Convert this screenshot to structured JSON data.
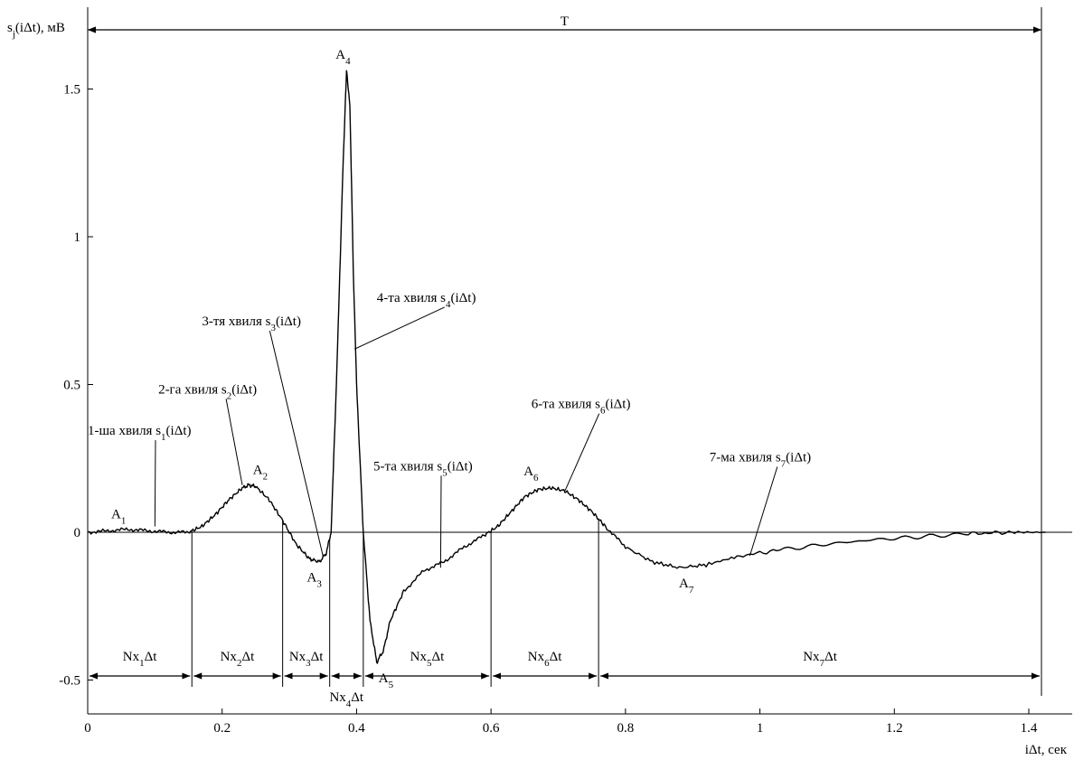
{
  "chart_data": {
    "type": "line",
    "ylabel": "s_j(iΔt), мВ",
    "xlabel": "iΔt, сек",
    "xlim": [
      0,
      1.425
    ],
    "ylim": [
      -0.5,
      1.75
    ],
    "grid": false,
    "x_ticks": [
      "0",
      "0.2",
      "0.4",
      "0.6",
      "0.8",
      "1",
      "1.2",
      "1.4"
    ],
    "x_tick_values": [
      0,
      0.2,
      0.4,
      0.6,
      0.8,
      1.0,
      1.2,
      1.4
    ],
    "y_ticks": [
      "-0.5",
      "0",
      "0.5",
      "1",
      "1.5"
    ],
    "y_tick_values": [
      -0.5,
      0,
      0.5,
      1.0,
      1.5
    ],
    "period": {
      "label": "T",
      "from": 0,
      "to": 1.425
    },
    "series": [
      {
        "x": [
          0,
          0.03,
          0.06,
          0.09,
          0.12,
          0.15,
          0.17,
          0.19,
          0.21,
          0.23,
          0.24,
          0.25,
          0.27,
          0.29,
          0.31,
          0.33,
          0.345,
          0.355,
          0.362,
          0.37,
          0.38,
          0.385,
          0.39,
          0.395,
          0.4,
          0.41,
          0.42,
          0.43,
          0.44,
          0.45,
          0.47,
          0.5,
          0.53,
          0.56,
          0.59,
          0.61,
          0.63,
          0.65,
          0.67,
          0.69,
          0.71,
          0.73,
          0.75,
          0.77,
          0.8,
          0.84,
          0.88,
          0.92,
          0.97,
          1.03,
          1.1,
          1.17,
          1.24,
          1.31,
          1.37,
          1.425
        ],
        "y": [
          0.0,
          0.005,
          0.01,
          0.005,
          0.0,
          0.0,
          0.02,
          0.06,
          0.11,
          0.15,
          0.16,
          0.155,
          0.11,
          0.04,
          -0.04,
          -0.09,
          -0.1,
          -0.07,
          0.0,
          0.5,
          1.25,
          1.56,
          1.45,
          0.9,
          0.5,
          0.0,
          -0.3,
          -0.44,
          -0.4,
          -0.3,
          -0.2,
          -0.13,
          -0.1,
          -0.05,
          -0.01,
          0.02,
          0.07,
          0.12,
          0.145,
          0.15,
          0.14,
          0.11,
          0.07,
          0.02,
          -0.05,
          -0.1,
          -0.12,
          -0.11,
          -0.08,
          -0.06,
          -0.04,
          -0.025,
          -0.015,
          -0.005,
          0.0,
          0.0
        ]
      }
    ],
    "peaks": [
      {
        "label": "A",
        "sub": "1",
        "x": 0.07,
        "y": 0.01
      },
      {
        "label": "A",
        "sub": "2",
        "x": 0.235,
        "y": 0.16
      },
      {
        "label": "A",
        "sub": "3",
        "x": 0.345,
        "y": -0.1
      },
      {
        "label": "A",
        "sub": "4",
        "x": 0.385,
        "y": 1.56
      },
      {
        "label": "A",
        "sub": "5",
        "x": 0.43,
        "y": -0.44
      },
      {
        "label": "A",
        "sub": "6",
        "x": 0.67,
        "y": 0.15
      },
      {
        "label": "A",
        "sub": "7",
        "x": 0.885,
        "y": -0.12
      }
    ],
    "waves": [
      {
        "pre": "1-ша хвиля s",
        "sub": "1",
        "post": "(iΔt)",
        "tx": 0.0,
        "ty": 0.33,
        "px": 0.1,
        "py": 0.02
      },
      {
        "pre": "2-га хвиля s",
        "sub": "2",
        "post": "(iΔt)",
        "tx": 0.105,
        "ty": 0.47,
        "px": 0.23,
        "py": 0.16
      },
      {
        "pre": "3-тя хвиля s",
        "sub": "3",
        "post": "(iΔt)",
        "tx": 0.17,
        "ty": 0.7,
        "px": 0.35,
        "py": -0.08
      },
      {
        "pre": "4-та хвиля s",
        "sub": "4",
        "post": "(iΔt)",
        "tx": 0.43,
        "ty": 0.78,
        "px": 0.397,
        "py": 0.62
      },
      {
        "pre": "5-та хвиля s",
        "sub": "5",
        "post": "(iΔt)",
        "tx": 0.425,
        "ty": 0.21,
        "px": 0.525,
        "py": -0.12
      },
      {
        "pre": "6-та хвиля s",
        "sub": "6",
        "post": "(iΔt)",
        "tx": 0.66,
        "ty": 0.42,
        "px": 0.71,
        "py": 0.14
      },
      {
        "pre": "7-ма хвиля s",
        "sub": "7",
        "post": "(iΔt)",
        "tx": 0.925,
        "ty": 0.24,
        "px": 0.985,
        "py": -0.08
      }
    ],
    "segments": [
      {
        "pre": "Nx",
        "sub": "1",
        "post": "Δt",
        "from": 0,
        "to": 0.155
      },
      {
        "pre": "Nx",
        "sub": "2",
        "post": "Δt",
        "from": 0.155,
        "to": 0.29
      },
      {
        "pre": "Nx",
        "sub": "3",
        "post": "Δt",
        "from": 0.29,
        "to": 0.36
      },
      {
        "pre": "Nx",
        "sub": "4",
        "post": "Δt",
        "from": 0.36,
        "to": 0.41
      },
      {
        "pre": "Nx",
        "sub": "5",
        "post": "Δt",
        "from": 0.41,
        "to": 0.6
      },
      {
        "pre": "Nx",
        "sub": "6",
        "post": "Δt",
        "from": 0.6,
        "to": 0.76
      },
      {
        "pre": "Nx",
        "sub": "7",
        "post": "Δt",
        "from": 0.76,
        "to": 1.425
      }
    ]
  }
}
